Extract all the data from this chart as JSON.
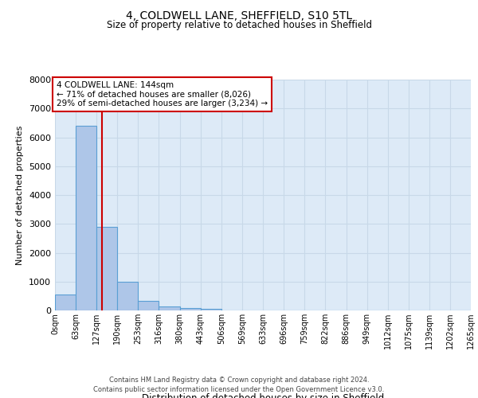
{
  "title": "4, COLDWELL LANE, SHEFFIELD, S10 5TL",
  "subtitle": "Size of property relative to detached houses in Sheffield",
  "xlabel": "Distribution of detached houses by size in Sheffield",
  "ylabel": "Number of detached properties",
  "bin_edges": [
    0,
    63,
    127,
    190,
    253,
    316,
    380,
    443,
    506,
    569,
    633,
    696,
    759,
    822,
    886,
    949,
    1012,
    1075,
    1139,
    1202,
    1265
  ],
  "bar_heights": [
    550,
    6400,
    2900,
    980,
    340,
    150,
    90,
    60,
    0,
    0,
    0,
    0,
    0,
    0,
    0,
    0,
    0,
    0,
    0,
    0
  ],
  "bar_color": "#aec6e8",
  "bar_edge_color": "#5a9fd4",
  "property_line_x": 144,
  "property_line_color": "#cc0000",
  "ylim": [
    0,
    8000
  ],
  "yticks": [
    0,
    1000,
    2000,
    3000,
    4000,
    5000,
    6000,
    7000,
    8000
  ],
  "annotation_line1": "4 COLDWELL LANE: 144sqm",
  "annotation_line2": "← 71% of detached houses are smaller (8,026)",
  "annotation_line3": "29% of semi-detached houses are larger (3,234) →",
  "annotation_box_color": "#cc0000",
  "annotation_box_fill": "#ffffff",
  "footer_line1": "Contains HM Land Registry data © Crown copyright and database right 2024.",
  "footer_line2": "Contains public sector information licensed under the Open Government Licence v3.0.",
  "grid_color": "#c8d8e8",
  "background_color": "#ddeaf7",
  "fig_bg_color": "#ffffff",
  "tick_labels": [
    "0sqm",
    "63sqm",
    "127sqm",
    "190sqm",
    "253sqm",
    "316sqm",
    "380sqm",
    "443sqm",
    "506sqm",
    "569sqm",
    "633sqm",
    "696sqm",
    "759sqm",
    "822sqm",
    "886sqm",
    "949sqm",
    "1012sqm",
    "1075sqm",
    "1139sqm",
    "1202sqm",
    "1265sqm"
  ]
}
